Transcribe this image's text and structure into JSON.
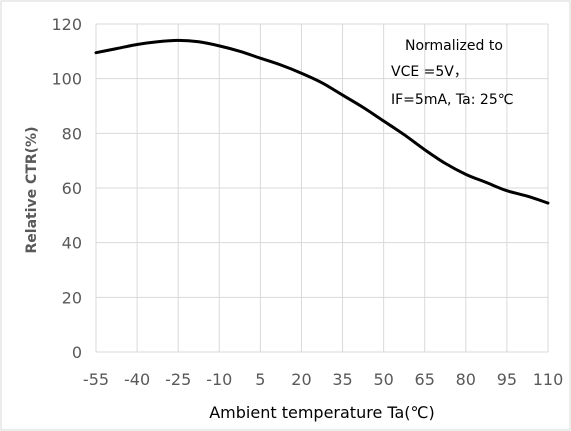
{
  "chart_data": {
    "type": "line",
    "title": "",
    "xlabel": "Ambient temperature Ta(℃)",
    "ylabel": "Relative CTR(%)",
    "x_ticks": [
      "-55",
      "-40",
      "-25",
      "-10",
      "5",
      "20",
      "35",
      "50",
      "65",
      "80",
      "95",
      "110"
    ],
    "y_ticks": [
      "0",
      "20",
      "40",
      "60",
      "80",
      "100",
      "120"
    ],
    "xlim": [
      -55,
      110
    ],
    "ylim": [
      0,
      120
    ],
    "grid": true,
    "annotation": [
      "Normalized to",
      "VCE =5V，",
      "IF=5mA, Ta: 25℃"
    ],
    "series": [
      {
        "x": [
          -55,
          -47.5,
          -40,
          -32.5,
          -25,
          -17.5,
          -10,
          -2.5,
          5,
          12.5,
          20,
          27.5,
          35,
          42.5,
          50,
          57.5,
          65,
          72.5,
          80,
          87.5,
          95,
          102.5,
          110
        ],
        "y": [
          109.5,
          111,
          112.5,
          113.5,
          114,
          113.5,
          112,
          110,
          107.5,
          105,
          102,
          98.5,
          94,
          89.5,
          84.5,
          79.5,
          74,
          69,
          65,
          62,
          59,
          57,
          54.5
        ]
      }
    ],
    "colors": {
      "line": "#000000",
      "grid": "#d9d9d9",
      "tick": "#595959",
      "border": "#d9d9d9"
    }
  }
}
